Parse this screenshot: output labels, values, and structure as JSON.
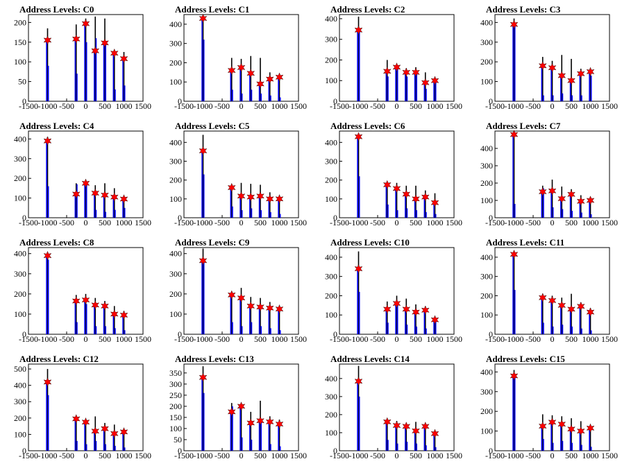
{
  "colors": {
    "peak_black": "#000000",
    "peak_blue": "#0000ff",
    "marker": "#ff0000"
  },
  "chart_data": [
    {
      "type": "bar",
      "title": "Address Levels: C0",
      "xlim": [
        -1500,
        1500
      ],
      "ylim": [
        0,
        220
      ],
      "xticks": [
        "-1500",
        "-1000",
        "-500",
        "0",
        "500",
        "1000",
        "1500"
      ],
      "yticks": [
        "0",
        "50",
        "100",
        "150",
        "200"
      ],
      "x": [
        -1000,
        -250,
        0,
        250,
        500,
        750,
        1000
      ],
      "black": [
        185,
        195,
        210,
        215,
        210,
        125,
        125
      ],
      "blue": [
        90,
        70,
        150,
        160,
        150,
        30,
        40
      ],
      "markers": [
        155,
        158,
        197,
        128,
        148,
        122,
        108
      ]
    },
    {
      "type": "bar",
      "title": "Address Levels: C1",
      "xlim": [
        -1500,
        1500
      ],
      "ylim": [
        0,
        450
      ],
      "xticks": [
        "-1500",
        "-1000",
        "-500",
        "0",
        "500",
        "1000",
        "1500"
      ],
      "yticks": [
        "0",
        "100",
        "200",
        "300",
        "400"
      ],
      "x": [
        -1000,
        -250,
        0,
        250,
        500,
        750,
        1000
      ],
      "black": [
        430,
        225,
        220,
        235,
        225,
        150,
        135
      ],
      "blue": [
        320,
        60,
        40,
        60,
        40,
        30,
        20
      ],
      "markers": [
        430,
        160,
        175,
        145,
        90,
        115,
        125
      ]
    },
    {
      "type": "bar",
      "title": "Address Levels: C2",
      "xlim": [
        -1500,
        1500
      ],
      "ylim": [
        0,
        420
      ],
      "xticks": [
        "-1500",
        "-1000",
        "-500",
        "0",
        "500",
        "1000",
        "1500"
      ],
      "yticks": [
        "0",
        "100",
        "200",
        "300",
        "400"
      ],
      "x": [
        -1000,
        -250,
        0,
        250,
        500,
        750,
        1000
      ],
      "black": [
        410,
        200,
        175,
        160,
        165,
        140,
        115
      ],
      "blue": [
        350,
        120,
        160,
        120,
        145,
        60,
        100
      ],
      "markers": [
        345,
        145,
        165,
        140,
        140,
        90,
        100
      ]
    },
    {
      "type": "bar",
      "title": "Address Levels: C3",
      "xlim": [
        -1500,
        1500
      ],
      "ylim": [
        0,
        440
      ],
      "xticks": [
        "-1500",
        "-1000",
        "-500",
        "0",
        "500",
        "1000",
        "1500"
      ],
      "yticks": [
        "0",
        "100",
        "200",
        "300",
        "400"
      ],
      "x": [
        -1000,
        -250,
        0,
        250,
        500,
        750,
        1000
      ],
      "black": [
        420,
        225,
        205,
        235,
        215,
        165,
        150
      ],
      "blue": [
        380,
        30,
        30,
        40,
        30,
        30,
        130
      ],
      "markers": [
        390,
        180,
        170,
        130,
        105,
        140,
        150
      ]
    },
    {
      "type": "bar",
      "title": "Address Levels: C4",
      "xlim": [
        -1500,
        1500
      ],
      "ylim": [
        0,
        440
      ],
      "xticks": [
        "-1500",
        "-1000",
        "-500",
        "0",
        "500",
        "1000",
        "1500"
      ],
      "yticks": [
        "0",
        "100",
        "200",
        "300",
        "400"
      ],
      "x": [
        -1000,
        -250,
        0,
        250,
        500,
        750,
        1000
      ],
      "black": [
        410,
        175,
        185,
        165,
        175,
        150,
        110
      ],
      "blue": [
        160,
        170,
        175,
        40,
        30,
        40,
        50
      ],
      "markers": [
        390,
        120,
        175,
        125,
        115,
        105,
        95
      ]
    },
    {
      "type": "bar",
      "title": "Address Levels: C5",
      "xlim": [
        -1500,
        1500
      ],
      "ylim": [
        0,
        460
      ],
      "xticks": [
        "-1500",
        "-1000",
        "-500",
        "0",
        "500",
        "1000",
        "1500"
      ],
      "yticks": [
        "0",
        "100",
        "200",
        "300",
        "400"
      ],
      "x": [
        -1000,
        -250,
        0,
        250,
        500,
        750,
        1000
      ],
      "black": [
        440,
        165,
        185,
        180,
        175,
        135,
        110
      ],
      "blue": [
        230,
        60,
        40,
        50,
        40,
        30,
        20
      ],
      "markers": [
        355,
        160,
        115,
        110,
        115,
        100,
        100
      ]
    },
    {
      "type": "bar",
      "title": "Address Levels: C6",
      "xlim": [
        -1500,
        1500
      ],
      "ylim": [
        0,
        460
      ],
      "xticks": [
        "-1500",
        "-1000",
        "-500",
        "0",
        "500",
        "1000",
        "1500"
      ],
      "yticks": [
        "0",
        "100",
        "200",
        "300",
        "400"
      ],
      "x": [
        -1000,
        -250,
        0,
        250,
        500,
        750,
        1000
      ],
      "black": [
        440,
        190,
        185,
        170,
        170,
        145,
        130
      ],
      "blue": [
        220,
        70,
        40,
        50,
        40,
        30,
        20
      ],
      "markers": [
        430,
        175,
        155,
        125,
        100,
        110,
        80
      ]
    },
    {
      "type": "bar",
      "title": "Address Levels: C7",
      "xlim": [
        -1500,
        1500
      ],
      "ylim": [
        0,
        500
      ],
      "xticks": [
        "-1500",
        "-1000",
        "-500",
        "0",
        "500",
        "1000",
        "1500"
      ],
      "yticks": [
        "0",
        "100",
        "200",
        "300",
        "400"
      ],
      "x": [
        -1000,
        -250,
        0,
        250,
        500,
        750,
        1000
      ],
      "black": [
        490,
        185,
        220,
        180,
        165,
        130,
        120
      ],
      "blue": [
        80,
        170,
        60,
        50,
        40,
        30,
        20
      ],
      "markers": [
        480,
        150,
        155,
        110,
        135,
        95,
        100
      ]
    },
    {
      "type": "bar",
      "title": "Address Levels: C8",
      "xlim": [
        -1500,
        1500
      ],
      "ylim": [
        0,
        430
      ],
      "xticks": [
        "-1500",
        "-1000",
        "-500",
        "0",
        "500",
        "1000",
        "1500"
      ],
      "yticks": [
        "0",
        "100",
        "200",
        "300",
        "400"
      ],
      "x": [
        -1000,
        -250,
        0,
        250,
        500,
        750,
        1000
      ],
      "black": [
        400,
        195,
        200,
        180,
        165,
        140,
        115
      ],
      "blue": [
        370,
        60,
        150,
        40,
        40,
        30,
        20
      ],
      "markers": [
        390,
        165,
        170,
        145,
        140,
        100,
        95
      ]
    },
    {
      "type": "bar",
      "title": "Address Levels: C9",
      "xlim": [
        -1500,
        1500
      ],
      "ylim": [
        0,
        430
      ],
      "xticks": [
        "-1500",
        "-1000",
        "-500",
        "0",
        "500",
        "1000",
        "1500"
      ],
      "yticks": [
        "0",
        "100",
        "200",
        "300",
        "400"
      ],
      "x": [
        -1000,
        -250,
        0,
        250,
        500,
        750,
        1000
      ],
      "black": [
        425,
        200,
        230,
        185,
        180,
        160,
        135
      ],
      "blue": [
        370,
        60,
        40,
        60,
        40,
        30,
        20
      ],
      "markers": [
        365,
        195,
        180,
        140,
        135,
        130,
        125
      ]
    },
    {
      "type": "bar",
      "title": "Address Levels: C10",
      "xlim": [
        -1500,
        1500
      ],
      "ylim": [
        0,
        450
      ],
      "xticks": [
        "-1500",
        "-1000",
        "-500",
        "0",
        "500",
        "1000",
        "1500"
      ],
      "yticks": [
        "0",
        "100",
        "200",
        "300",
        "400"
      ],
      "x": [
        -1000,
        -250,
        0,
        250,
        500,
        750,
        1000
      ],
      "black": [
        430,
        170,
        200,
        185,
        155,
        145,
        90
      ],
      "blue": [
        220,
        60,
        150,
        50,
        40,
        30,
        70
      ],
      "markers": [
        340,
        130,
        160,
        130,
        115,
        125,
        75
      ]
    },
    {
      "type": "bar",
      "title": "Address Levels: C11",
      "xlim": [
        -1500,
        1500
      ],
      "ylim": [
        0,
        450
      ],
      "xticks": [
        "-1500",
        "-1000",
        "-500",
        "0",
        "500",
        "1000",
        "1500"
      ],
      "yticks": [
        "0",
        "100",
        "200",
        "300",
        "400"
      ],
      "x": [
        -1000,
        -250,
        0,
        250,
        500,
        750,
        1000
      ],
      "black": [
        420,
        210,
        200,
        190,
        210,
        165,
        135
      ],
      "blue": [
        230,
        60,
        40,
        50,
        40,
        30,
        20
      ],
      "markers": [
        415,
        190,
        175,
        150,
        130,
        145,
        115
      ]
    },
    {
      "type": "bar",
      "title": "Address Levels: C12",
      "xlim": [
        -1500,
        1500
      ],
      "ylim": [
        0,
        530
      ],
      "xticks": [
        "-1500",
        "-1000",
        "-500",
        "0",
        "500",
        "1000",
        "1500"
      ],
      "yticks": [
        "0",
        "100",
        "200",
        "300",
        "400",
        "500"
      ],
      "x": [
        -1000,
        -250,
        0,
        250,
        500,
        750,
        1000
      ],
      "black": [
        500,
        200,
        190,
        210,
        170,
        160,
        130
      ],
      "blue": [
        340,
        60,
        40,
        60,
        40,
        30,
        20
      ],
      "markers": [
        420,
        195,
        175,
        120,
        135,
        105,
        115
      ]
    },
    {
      "type": "bar",
      "title": "Address Levels: C13",
      "xlim": [
        -1500,
        1500
      ],
      "ylim": [
        0,
        390
      ],
      "xticks": [
        "-1500",
        "-1000",
        "-500",
        "0",
        "500",
        "1000",
        "1500"
      ],
      "yticks": [
        "0",
        "50",
        "100",
        "150",
        "200",
        "250",
        "300",
        "350"
      ],
      "x": [
        -1000,
        -250,
        0,
        250,
        500,
        750,
        1000
      ],
      "black": [
        380,
        215,
        210,
        175,
        225,
        155,
        140
      ],
      "blue": [
        260,
        200,
        60,
        50,
        140,
        30,
        20
      ],
      "markers": [
        330,
        175,
        200,
        125,
        135,
        130,
        120
      ]
    },
    {
      "type": "bar",
      "title": "Address Levels: C14",
      "xlim": [
        -1500,
        1500
      ],
      "ylim": [
        0,
        480
      ],
      "xticks": [
        "-1500",
        "-1000",
        "-500",
        "0",
        "500",
        "1000",
        "1500"
      ],
      "yticks": [
        "0",
        "100",
        "200",
        "300",
        "400"
      ],
      "x": [
        -1000,
        -250,
        0,
        250,
        500,
        750,
        1000
      ],
      "black": [
        470,
        170,
        165,
        150,
        160,
        135,
        105
      ],
      "blue": [
        300,
        60,
        40,
        50,
        40,
        30,
        20
      ],
      "markers": [
        385,
        160,
        140,
        135,
        110,
        135,
        95
      ]
    },
    {
      "type": "bar",
      "title": "Address Levels: C15",
      "xlim": [
        -1500,
        1500
      ],
      "ylim": [
        0,
        440
      ],
      "xticks": [
        "-1500",
        "-1000",
        "-500",
        "0",
        "500",
        "1000",
        "1500"
      ],
      "yticks": [
        "0",
        "100",
        "200",
        "300",
        "400"
      ],
      "x": [
        -1000,
        -250,
        0,
        250,
        500,
        750,
        1000
      ],
      "black": [
        410,
        185,
        180,
        175,
        165,
        150,
        125
      ],
      "blue": [
        380,
        60,
        40,
        50,
        40,
        30,
        20
      ],
      "markers": [
        380,
        125,
        145,
        135,
        110,
        100,
        115
      ]
    }
  ]
}
